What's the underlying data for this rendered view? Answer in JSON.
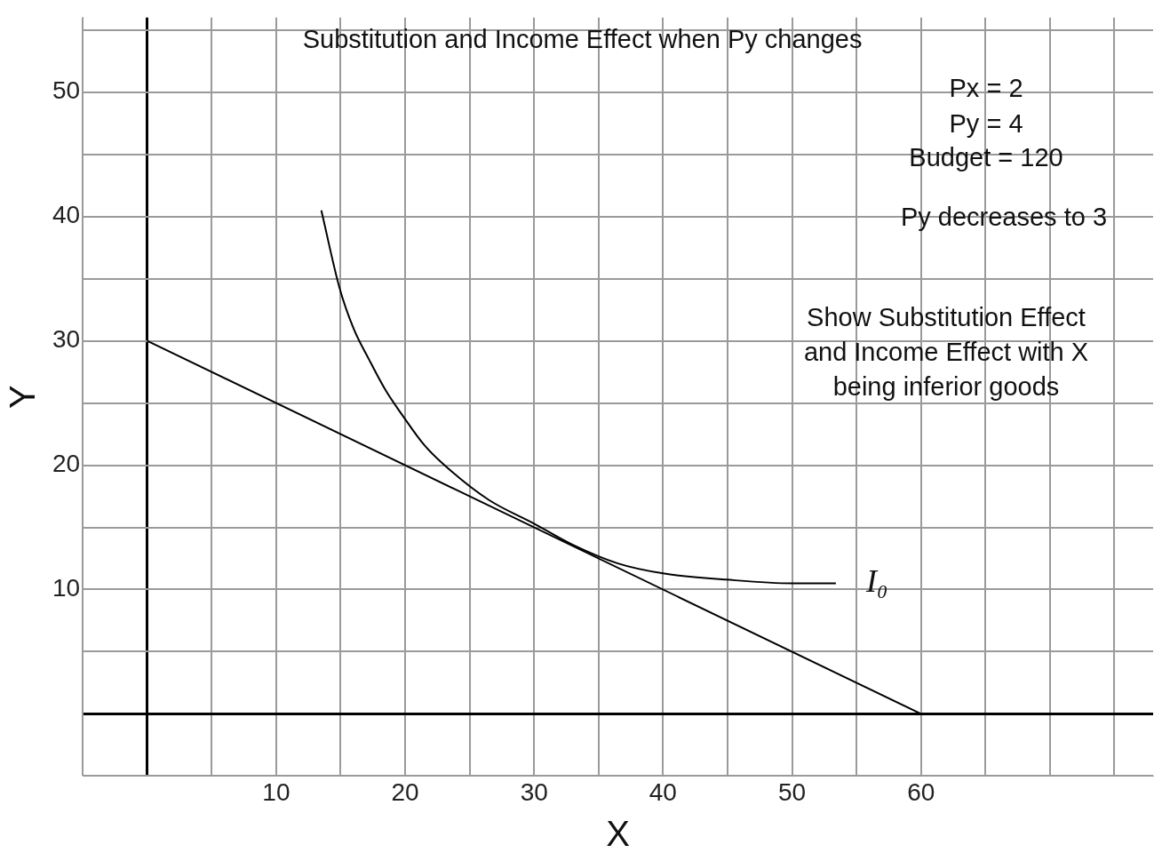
{
  "chart_data": {
    "type": "line",
    "title": "Substitution and Income Effect when Py changes",
    "xlabel": "X",
    "ylabel": "Y",
    "xlim": [
      -5,
      78
    ],
    "ylim": [
      -5,
      56
    ],
    "xticks": [
      {
        "value": -5,
        "label": null
      },
      {
        "value": 0,
        "label": null
      },
      {
        "value": 5,
        "label": null
      },
      10,
      {
        "value": 15,
        "label": null
      },
      20,
      {
        "value": 25,
        "label": null
      },
      30,
      {
        "value": 35,
        "label": null
      },
      40,
      {
        "value": 45,
        "label": null
      },
      50,
      {
        "value": 55,
        "label": null
      },
      60,
      {
        "value": 65,
        "label": null
      },
      {
        "value": 70,
        "label": null
      },
      {
        "value": 75,
        "label": null
      }
    ],
    "yticks": [
      {
        "value": -5,
        "label": null
      },
      {
        "value": 0,
        "label": null
      },
      {
        "value": 5,
        "label": null
      },
      10,
      {
        "value": 15,
        "label": null
      },
      20,
      {
        "value": 25,
        "label": null
      },
      30,
      {
        "value": 35,
        "label": null
      },
      40,
      {
        "value": 45,
        "label": null
      },
      50,
      {
        "value": 55,
        "label": null
      }
    ],
    "grid": true,
    "marker": "none",
    "line_style": "solid",
    "series": [
      {
        "color": "#000000",
        "x": [
          0,
          60
        ],
        "values": [
          30,
          0
        ]
      },
      {
        "name": "I₀",
        "color": "#000000",
        "x": [
          13.5,
          14.9,
          16,
          17.2,
          18.5,
          19.8,
          21.5,
          23.6,
          26.5,
          30,
          33,
          36.5,
          40,
          44.9,
          50,
          53.4
        ],
        "values": [
          40.5,
          34.3,
          31,
          28.5,
          26,
          24,
          21.6,
          19.5,
          17.2,
          15.3,
          13.6,
          12.1,
          11.3,
          10.8,
          10.5,
          10.5
        ]
      }
    ],
    "annotations": [
      "Px = 2",
      "Py = 4",
      "Budget = 120",
      "Py  decreases to 3",
      "Show Substitution Effect and Income Effect with X being inferior goods"
    ]
  }
}
